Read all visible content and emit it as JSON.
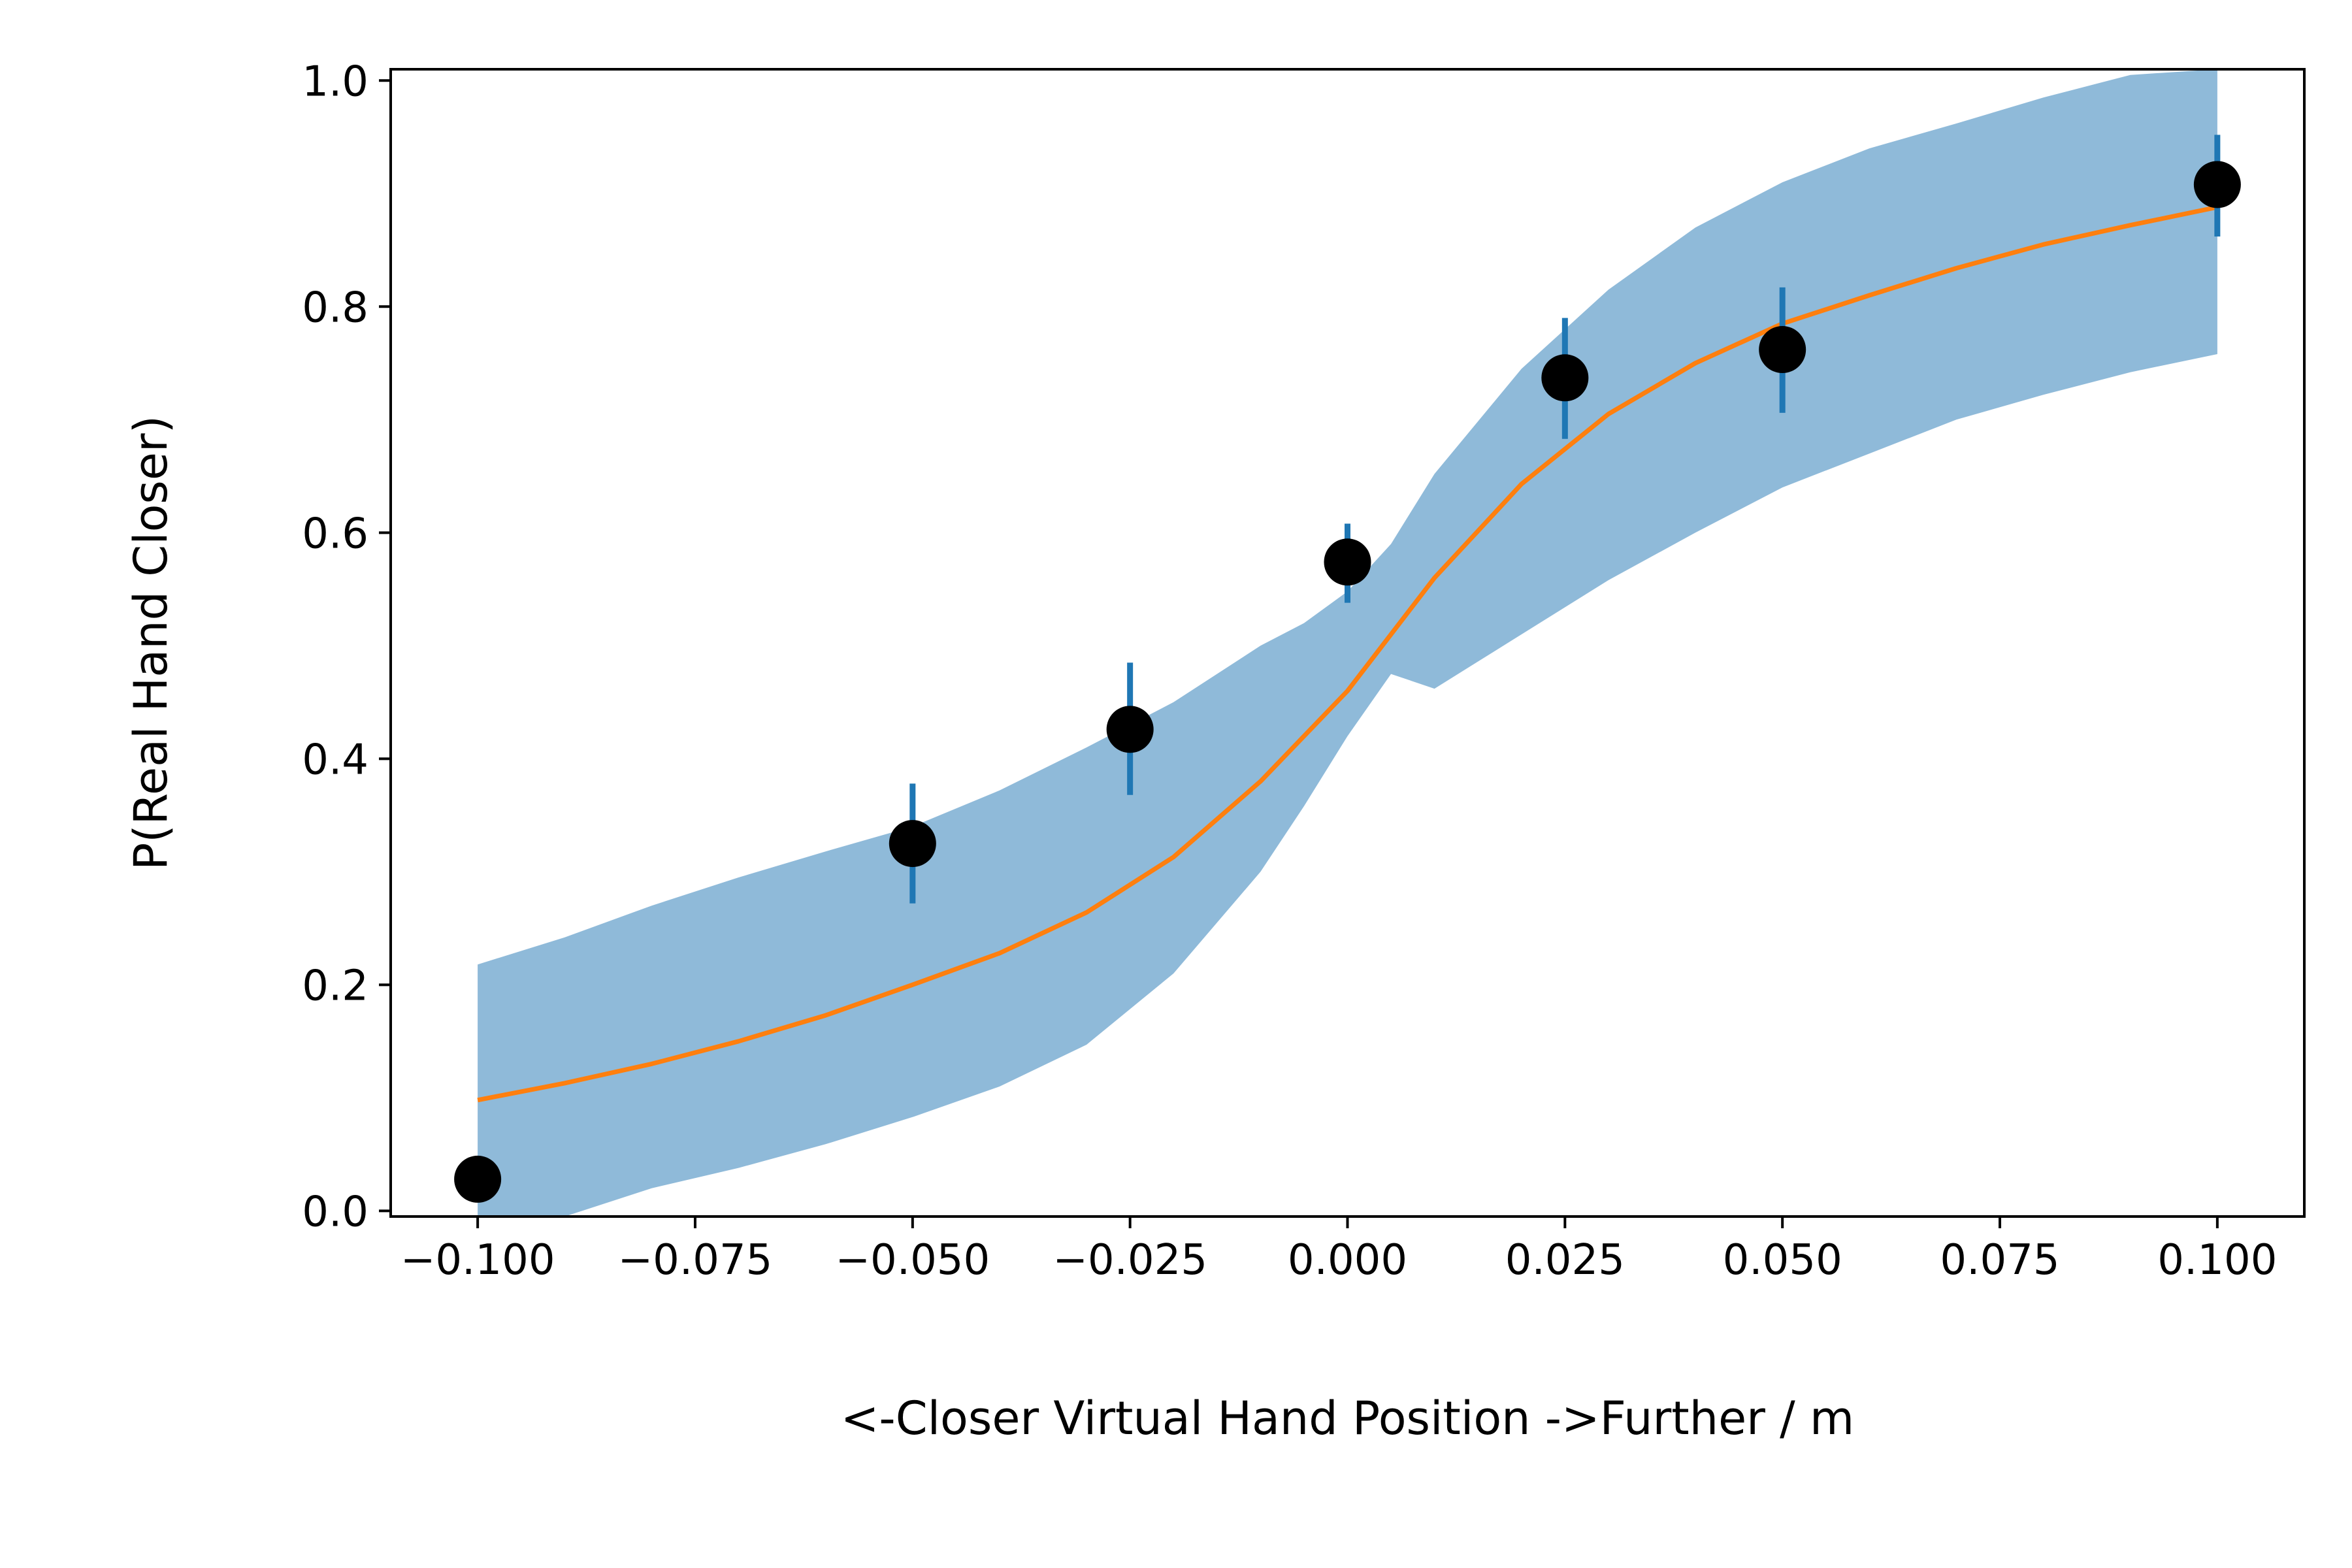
{
  "chart_data": {
    "type": "scatter",
    "title": "",
    "xlabel": "<-Closer Virtual Hand Position ->Further / m",
    "ylabel": "P(Real Hand Closer)",
    "xlim": [
      -0.11,
      0.11
    ],
    "ylim": [
      -0.005,
      1.01
    ],
    "grid": false,
    "x_ticks": [
      -0.1,
      -0.075,
      -0.05,
      -0.025,
      0.0,
      0.025,
      0.05,
      0.075,
      0.1
    ],
    "x_tick_labels": [
      "−0.100",
      "−0.075",
      "−0.050",
      "−0.025",
      "0.000",
      "0.025",
      "0.050",
      "0.075",
      "0.100"
    ],
    "y_ticks": [
      0.0,
      0.2,
      0.4,
      0.6,
      0.8,
      1.0
    ],
    "y_tick_labels": [
      "0.0",
      "0.2",
      "0.4",
      "0.6",
      "0.8",
      "1.0"
    ],
    "colors": {
      "points": "#000000",
      "error_bars": "#1f77b4",
      "fit": "#ff7f0e",
      "band": "#8fbad9"
    },
    "points": {
      "x": [
        -0.1,
        -0.05,
        -0.025,
        0.0,
        0.025,
        0.05,
        0.1
      ],
      "y": [
        0.028,
        0.325,
        0.426,
        0.574,
        0.737,
        0.762,
        0.908
      ],
      "err_low": [
        0.028,
        0.272,
        0.368,
        0.538,
        0.683,
        0.706,
        0.862
      ],
      "err_high": [
        0.028,
        0.378,
        0.485,
        0.608,
        0.79,
        0.817,
        0.952
      ]
    },
    "fit_curve": {
      "x": [
        -0.1,
        -0.09,
        -0.08,
        -0.07,
        -0.06,
        -0.05,
        -0.04,
        -0.03,
        -0.02,
        -0.01,
        0.0,
        0.01,
        0.02,
        0.03,
        0.04,
        0.05,
        0.06,
        0.07,
        0.08,
        0.09,
        0.1
      ],
      "y": [
        0.098,
        0.113,
        0.13,
        0.15,
        0.173,
        0.2,
        0.228,
        0.264,
        0.313,
        0.38,
        0.46,
        0.56,
        0.643,
        0.705,
        0.75,
        0.785,
        0.81,
        0.834,
        0.855,
        0.872,
        0.888
      ]
    },
    "confidence_band": {
      "x": [
        -0.1,
        -0.09,
        -0.08,
        -0.07,
        -0.06,
        -0.05,
        -0.04,
        -0.03,
        -0.02,
        -0.01,
        -0.005,
        0.0,
        0.005,
        0.01,
        0.02,
        0.03,
        0.04,
        0.05,
        0.06,
        0.07,
        0.08,
        0.09,
        0.1
      ],
      "lower": [
        -0.01,
        -0.005,
        0.02,
        0.038,
        0.059,
        0.083,
        0.11,
        0.147,
        0.21,
        0.3,
        0.358,
        0.42,
        0.475,
        0.462,
        0.51,
        0.558,
        0.6,
        0.64,
        0.67,
        0.7,
        0.722,
        0.742,
        0.758
      ],
      "upper": [
        0.218,
        0.242,
        0.27,
        0.295,
        0.318,
        0.34,
        0.372,
        0.41,
        0.45,
        0.5,
        0.52,
        0.548,
        0.59,
        0.652,
        0.745,
        0.815,
        0.87,
        0.91,
        0.94,
        0.962,
        0.985,
        1.005,
        1.01
      ]
    }
  }
}
